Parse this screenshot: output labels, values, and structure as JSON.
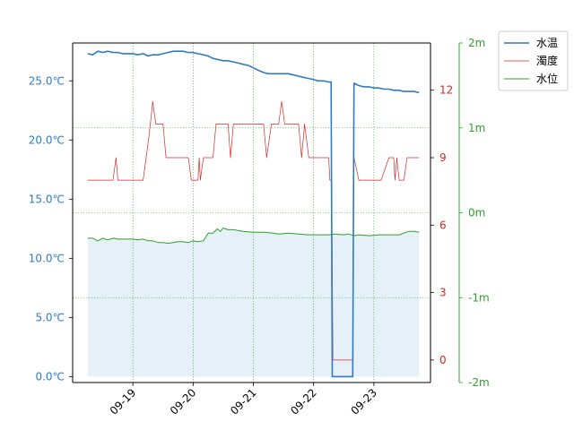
{
  "chart_data": {
    "type": "line",
    "x_ticks": [
      "09-19",
      "09-20",
      "09-21",
      "09-22",
      "09-23"
    ],
    "x_domain": [
      0,
      5.94
    ],
    "colors": {
      "temp": "#2f7bbf",
      "turb": "#d62728",
      "level": "#2ca02c",
      "fill": "#e6f0f8",
      "grid": "#2ca02c"
    },
    "axes": {
      "left": {
        "ticks": [
          "0.0℃",
          "5.0℃",
          "10.0℃",
          "15.0℃",
          "20.0℃",
          "25.0℃"
        ],
        "tick_values": [
          0,
          5,
          10,
          15,
          20,
          25
        ],
        "ylim": [
          -0.5,
          28.2
        ]
      },
      "right1": {
        "ticks": [
          "0",
          "3",
          "6",
          "9",
          "12"
        ],
        "tick_values": [
          0,
          3,
          6,
          9,
          12
        ],
        "ylim": [
          -1.0,
          14.1
        ]
      },
      "right2": {
        "ticks": [
          "-2m",
          "-1m",
          "0m",
          "1m",
          "2m"
        ],
        "tick_values": [
          -2,
          -1,
          0,
          1,
          2
        ],
        "ylim": [
          -2.0,
          2.0
        ]
      }
    },
    "legend": {
      "position": "top-right-outside",
      "entries": [
        "水温",
        "濁度",
        "水位"
      ]
    },
    "series": [
      {
        "name": "水温",
        "axis": "left",
        "points": [
          [
            0.25,
            27.3
          ],
          [
            0.33,
            27.2
          ],
          [
            0.42,
            27.5
          ],
          [
            0.5,
            27.4
          ],
          [
            0.58,
            27.5
          ],
          [
            0.67,
            27.4
          ],
          [
            0.75,
            27.4
          ],
          [
            0.83,
            27.3
          ],
          [
            0.92,
            27.3
          ],
          [
            1.0,
            27.3
          ],
          [
            1.08,
            27.2
          ],
          [
            1.17,
            27.3
          ],
          [
            1.25,
            27.1
          ],
          [
            1.33,
            27.2
          ],
          [
            1.42,
            27.2
          ],
          [
            1.5,
            27.3
          ],
          [
            1.58,
            27.4
          ],
          [
            1.67,
            27.5
          ],
          [
            1.75,
            27.5
          ],
          [
            1.83,
            27.5
          ],
          [
            1.92,
            27.4
          ],
          [
            2.0,
            27.4
          ],
          [
            2.08,
            27.3
          ],
          [
            2.17,
            27.2
          ],
          [
            2.25,
            27.1
          ],
          [
            2.33,
            26.9
          ],
          [
            2.42,
            26.8
          ],
          [
            2.5,
            26.7
          ],
          [
            2.58,
            26.7
          ],
          [
            2.67,
            26.6
          ],
          [
            2.75,
            26.5
          ],
          [
            2.83,
            26.4
          ],
          [
            2.92,
            26.3
          ],
          [
            3.0,
            26.1
          ],
          [
            3.08,
            25.9
          ],
          [
            3.17,
            25.7
          ],
          [
            3.25,
            25.6
          ],
          [
            3.33,
            25.6
          ],
          [
            3.42,
            25.6
          ],
          [
            3.5,
            25.6
          ],
          [
            3.58,
            25.6
          ],
          [
            3.67,
            25.5
          ],
          [
            3.75,
            25.4
          ],
          [
            3.83,
            25.3
          ],
          [
            3.92,
            25.2
          ],
          [
            4.0,
            25.1
          ],
          [
            4.08,
            25.0
          ],
          [
            4.17,
            25.0
          ],
          [
            4.25,
            24.9
          ],
          [
            4.29,
            24.9
          ],
          [
            4.31,
            0.0
          ],
          [
            4.65,
            0.0
          ],
          [
            4.67,
            24.8
          ],
          [
            4.75,
            24.6
          ],
          [
            4.83,
            24.5
          ],
          [
            4.92,
            24.5
          ],
          [
            5.0,
            24.4
          ],
          [
            5.08,
            24.4
          ],
          [
            5.17,
            24.3
          ],
          [
            5.25,
            24.3
          ],
          [
            5.33,
            24.2
          ],
          [
            5.42,
            24.2
          ],
          [
            5.5,
            24.1
          ],
          [
            5.58,
            24.1
          ],
          [
            5.67,
            24.1
          ],
          [
            5.75,
            24.0
          ]
        ]
      },
      {
        "name": "濁度",
        "axis": "right1",
        "points": [
          [
            0.25,
            8.0
          ],
          [
            0.67,
            8.0
          ],
          [
            0.72,
            9.0
          ],
          [
            0.75,
            8.0
          ],
          [
            1.17,
            8.0
          ],
          [
            1.27,
            10.0
          ],
          [
            1.33,
            11.5
          ],
          [
            1.38,
            10.5
          ],
          [
            1.5,
            10.5
          ],
          [
            1.55,
            9.0
          ],
          [
            1.92,
            9.0
          ],
          [
            1.97,
            8.0
          ],
          [
            2.08,
            8.0
          ],
          [
            2.1,
            9.0
          ],
          [
            2.12,
            8.0
          ],
          [
            2.17,
            9.0
          ],
          [
            2.33,
            9.0
          ],
          [
            2.38,
            10.5
          ],
          [
            2.58,
            10.5
          ],
          [
            2.62,
            9.0
          ],
          [
            2.67,
            10.5
          ],
          [
            3.17,
            10.5
          ],
          [
            3.22,
            9.0
          ],
          [
            3.3,
            10.5
          ],
          [
            3.42,
            10.5
          ],
          [
            3.47,
            11.5
          ],
          [
            3.52,
            10.5
          ],
          [
            3.75,
            10.5
          ],
          [
            3.8,
            9.0
          ],
          [
            3.85,
            10.5
          ],
          [
            3.92,
            9.0
          ],
          [
            4.25,
            9.0
          ],
          [
            4.27,
            8.0
          ],
          [
            4.3,
            8.0
          ],
          [
            4.32,
            0.0
          ],
          [
            4.65,
            0.0
          ],
          [
            4.67,
            9.0
          ],
          [
            4.75,
            8.0
          ],
          [
            5.08,
            8.0
          ],
          [
            5.12,
            8.0
          ],
          [
            5.25,
            9.0
          ],
          [
            5.33,
            9.0
          ],
          [
            5.35,
            8.0
          ],
          [
            5.38,
            9.0
          ],
          [
            5.42,
            8.0
          ],
          [
            5.5,
            8.0
          ],
          [
            5.55,
            9.0
          ],
          [
            5.75,
            9.0
          ]
        ]
      },
      {
        "name": "水位",
        "axis": "right2",
        "points": [
          [
            0.25,
            -0.3
          ],
          [
            0.33,
            -0.3
          ],
          [
            0.42,
            -0.33
          ],
          [
            0.5,
            -0.3
          ],
          [
            0.58,
            -0.32
          ],
          [
            0.67,
            -0.3
          ],
          [
            0.75,
            -0.31
          ],
          [
            0.83,
            -0.31
          ],
          [
            1.0,
            -0.31
          ],
          [
            1.08,
            -0.32
          ],
          [
            1.17,
            -0.31
          ],
          [
            1.25,
            -0.33
          ],
          [
            1.33,
            -0.33
          ],
          [
            1.42,
            -0.35
          ],
          [
            1.5,
            -0.35
          ],
          [
            1.58,
            -0.36
          ],
          [
            1.67,
            -0.35
          ],
          [
            1.75,
            -0.34
          ],
          [
            1.83,
            -0.34
          ],
          [
            1.92,
            -0.35
          ],
          [
            2.0,
            -0.33
          ],
          [
            2.08,
            -0.34
          ],
          [
            2.17,
            -0.33
          ],
          [
            2.25,
            -0.24
          ],
          [
            2.33,
            -0.24
          ],
          [
            2.4,
            -0.19
          ],
          [
            2.45,
            -0.22
          ],
          [
            2.5,
            -0.18
          ],
          [
            2.58,
            -0.2
          ],
          [
            2.67,
            -0.2
          ],
          [
            2.75,
            -0.21
          ],
          [
            2.83,
            -0.22
          ],
          [
            3.0,
            -0.23
          ],
          [
            3.17,
            -0.23
          ],
          [
            3.33,
            -0.24
          ],
          [
            3.42,
            -0.25
          ],
          [
            3.58,
            -0.24
          ],
          [
            3.75,
            -0.25
          ],
          [
            3.92,
            -0.26
          ],
          [
            4.08,
            -0.26
          ],
          [
            4.25,
            -0.26
          ],
          [
            4.33,
            -0.25
          ],
          [
            4.5,
            -0.26
          ],
          [
            4.58,
            -0.25
          ],
          [
            4.67,
            -0.27
          ],
          [
            4.75,
            -0.26
          ],
          [
            4.92,
            -0.27
          ],
          [
            5.08,
            -0.26
          ],
          [
            5.25,
            -0.26
          ],
          [
            5.42,
            -0.26
          ],
          [
            5.5,
            -0.24
          ],
          [
            5.58,
            -0.22
          ],
          [
            5.67,
            -0.22
          ],
          [
            5.75,
            -0.23
          ]
        ]
      }
    ]
  }
}
